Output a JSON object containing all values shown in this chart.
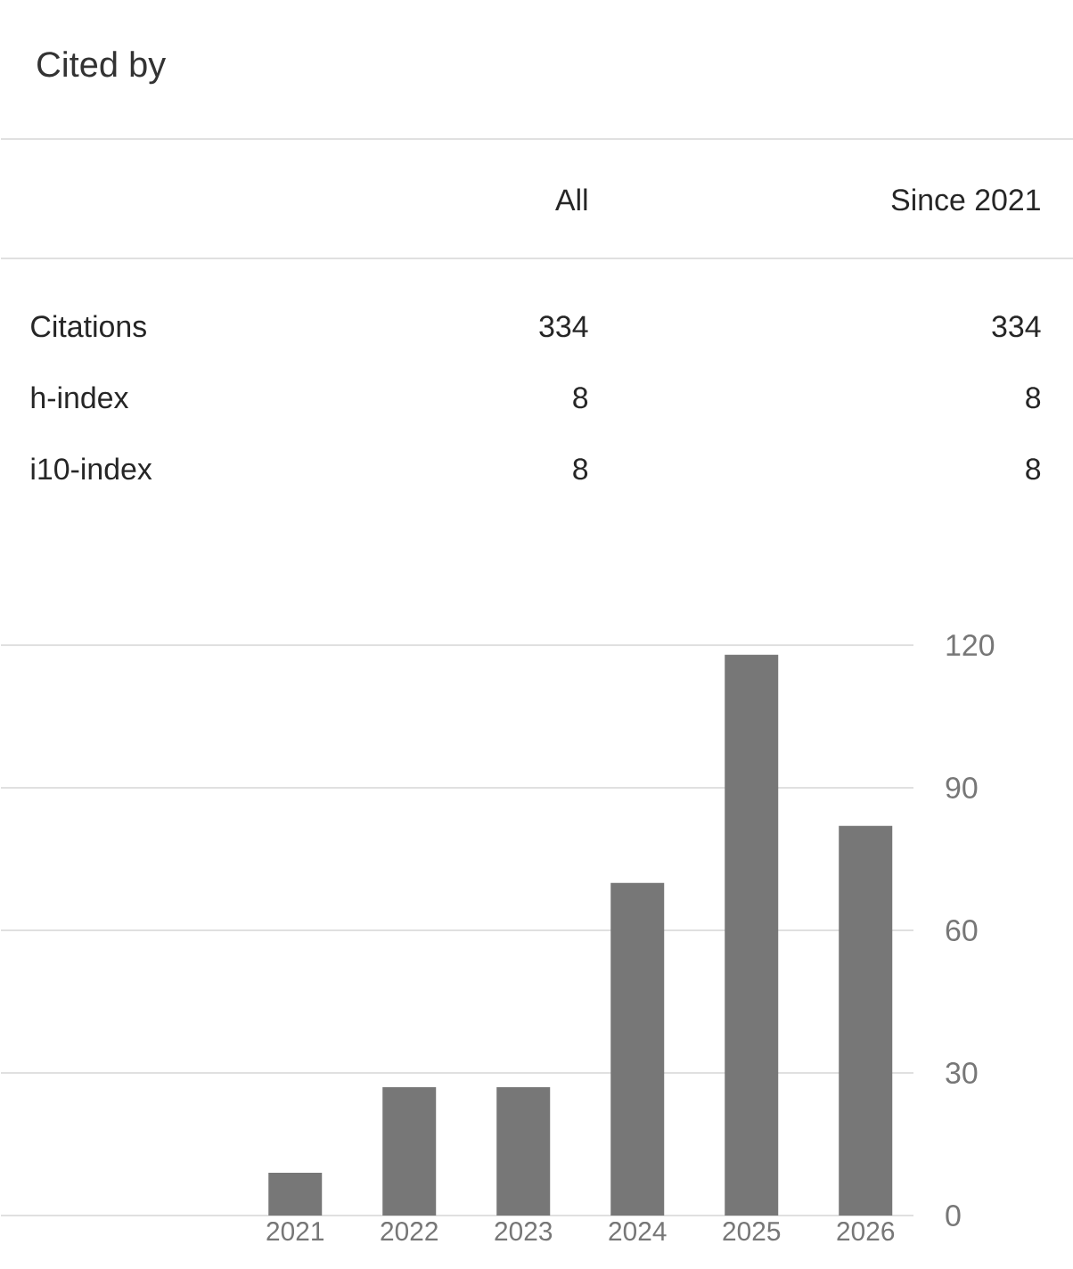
{
  "chart_data": {
    "type": "bar",
    "title": "Cited by",
    "annotations": [
      "All",
      "Since 2021",
      "Citations",
      "334",
      "334",
      "h-index",
      "8",
      "8",
      "i10-index",
      "8",
      "8"
    ],
    "categories": [
      "2021",
      "2022",
      "2023",
      "2024",
      "2025",
      "2026"
    ],
    "values": [
      9,
      27,
      27,
      70,
      118,
      82
    ],
    "color": "#777777",
    "ylim": [
      0,
      120
    ],
    "yticks": [
      0,
      30,
      60,
      90,
      120
    ],
    "grid": "y"
  }
}
